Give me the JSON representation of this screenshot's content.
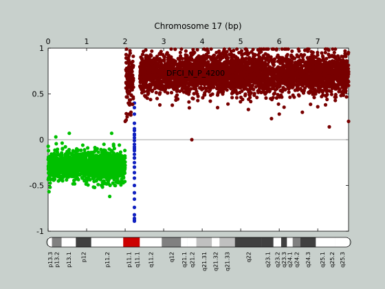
{
  "chart_data": {
    "type": "scatter",
    "title": "Chromosome 17 (bp)",
    "annotation": "DFCI_N_P_4200",
    "xlim": [
      0,
      7.8
    ],
    "ylim": [
      -1,
      1
    ],
    "x_ticks": [
      0,
      1,
      2,
      3,
      4,
      5,
      6,
      7
    ],
    "y_ticks": [
      -1,
      -0.5,
      0,
      0.5,
      1
    ],
    "colors": {
      "left_arm": "#00c000",
      "centromere": "#1020c0",
      "right_arm": "#780000",
      "background": "#c8d0cc",
      "plot_area": "#ffffff",
      "zero_line": "#808080"
    },
    "series": [
      {
        "x_range": [
          0,
          2.0
        ],
        "y_mean": -0.29,
        "y_spread": 0.08,
        "n_points": 1400,
        "outliers": [
          [
            0.05,
            -0.52
          ],
          [
            0.3,
            -0.44
          ],
          [
            0.55,
            0.07
          ],
          [
            0.9,
            -0.06
          ],
          [
            1.25,
            -0.45
          ],
          [
            1.6,
            -0.62
          ],
          [
            1.65,
            0.07
          ],
          [
            1.7,
            -0.05
          ],
          [
            1.82,
            -0.47
          ],
          [
            1.3,
            -0.49
          ],
          [
            1.45,
            -0.05
          ],
          [
            0.2,
            0.03
          ]
        ]
      },
      {
        "points": [
          [
            2.24,
            0.35
          ],
          [
            2.24,
            0.28
          ],
          [
            2.24,
            0.18
          ],
          [
            2.24,
            0.12
          ],
          [
            2.24,
            0.06
          ],
          [
            2.24,
            0.02
          ],
          [
            2.24,
            -0.01
          ],
          [
            2.24,
            -0.05
          ],
          [
            2.24,
            -0.08
          ],
          [
            2.24,
            -0.12
          ],
          [
            2.24,
            -0.16
          ],
          [
            2.24,
            -0.2
          ],
          [
            2.24,
            -0.25
          ],
          [
            2.24,
            -0.3
          ],
          [
            2.24,
            -0.36
          ],
          [
            2.24,
            -0.42
          ],
          [
            2.24,
            -0.5
          ],
          [
            2.24,
            -0.58
          ],
          [
            2.24,
            -0.65
          ],
          [
            2.24,
            -0.74
          ],
          [
            2.24,
            -0.82
          ],
          [
            2.24,
            -0.86
          ],
          [
            2.24,
            -0.88
          ],
          [
            2.24,
            -0.89
          ],
          [
            2.24,
            0.4
          ],
          [
            2.24,
            0.1
          ],
          [
            2.24,
            -0.2
          ],
          [
            2.24,
            -0.3
          ],
          [
            2.24,
            0.05
          ],
          [
            2.24,
            -0.1
          ]
        ]
      },
      {
        "x_range": [
          2.02,
          2.22
        ],
        "y_mean": 0.68,
        "y_spread": 0.14,
        "n_points": 120,
        "outliers": [
          [
            2.0,
            0.2
          ],
          [
            2.05,
            0.25
          ],
          [
            2.1,
            0.28
          ],
          [
            2.15,
            0.3
          ]
        ]
      },
      {
        "x_range": [
          2.38,
          7.8
        ],
        "y_mean": 0.72,
        "y_spread": 0.11,
        "n_points": 3600,
        "outliers": [
          [
            3.73,
            0.0
          ],
          [
            5.8,
            0.23
          ],
          [
            6.0,
            0.28
          ],
          [
            7.3,
            0.14
          ],
          [
            7.8,
            0.2
          ],
          [
            4.4,
            0.35
          ],
          [
            5.2,
            0.33
          ],
          [
            2.9,
            0.38
          ],
          [
            6.6,
            0.3
          ],
          [
            7.0,
            0.36
          ]
        ]
      }
    ],
    "ideogram": {
      "bands": [
        {
          "label": "p13.3",
          "start": 0.0,
          "end": 0.1,
          "color": "#ffffff"
        },
        {
          "label": "p13.2",
          "start": 0.1,
          "end": 0.35,
          "color": "#808080"
        },
        {
          "label": "p13.1",
          "start": 0.35,
          "end": 0.72,
          "color": "#ffffff"
        },
        {
          "label": "p12",
          "start": 0.72,
          "end": 1.12,
          "color": "#404040"
        },
        {
          "label": "p11.2",
          "start": 1.12,
          "end": 1.95,
          "color": "#ffffff"
        },
        {
          "label": "p11.1",
          "start": 1.95,
          "end": 2.24,
          "color": "#cc0000"
        },
        {
          "label": "q11.1",
          "start": 2.24,
          "end": 2.38,
          "color": "#cc0000"
        },
        {
          "label": "q11.2",
          "start": 2.38,
          "end": 2.95,
          "color": "#ffffff"
        },
        {
          "label": "q12",
          "start": 2.95,
          "end": 3.45,
          "color": "#808080"
        },
        {
          "label": "q21.1",
          "start": 3.45,
          "end": 3.62,
          "color": "#ffffff"
        },
        {
          "label": "q21.2",
          "start": 3.62,
          "end": 3.85,
          "color": "#ffffff"
        },
        {
          "label": "q21.31",
          "start": 3.85,
          "end": 4.25,
          "color": "#c0c0c0"
        },
        {
          "label": "q21.32",
          "start": 4.25,
          "end": 4.45,
          "color": "#ffffff"
        },
        {
          "label": "q21.33",
          "start": 4.45,
          "end": 4.85,
          "color": "#c0c0c0"
        },
        {
          "label": "q22",
          "start": 4.85,
          "end": 5.55,
          "color": "#404040"
        },
        {
          "label": "q23.1",
          "start": 5.55,
          "end": 5.85,
          "color": "#404040"
        },
        {
          "label": "q23.2",
          "start": 5.85,
          "end": 6.05,
          "color": "#ffffff"
        },
        {
          "label": "q23.3",
          "start": 6.05,
          "end": 6.2,
          "color": "#404040"
        },
        {
          "label": "q24.1",
          "start": 6.2,
          "end": 6.35,
          "color": "#ffffff"
        },
        {
          "label": "q24.2",
          "start": 6.35,
          "end": 6.55,
          "color": "#808080"
        },
        {
          "label": "q24.3",
          "start": 6.55,
          "end": 6.95,
          "color": "#404040"
        },
        {
          "label": "q25.1",
          "start": 6.95,
          "end": 7.3,
          "color": "#ffffff"
        },
        {
          "label": "q25.2",
          "start": 7.3,
          "end": 7.45,
          "color": "#ffffff"
        },
        {
          "label": "q25.3",
          "start": 7.45,
          "end": 7.82,
          "color": "#ffffff"
        }
      ]
    }
  }
}
